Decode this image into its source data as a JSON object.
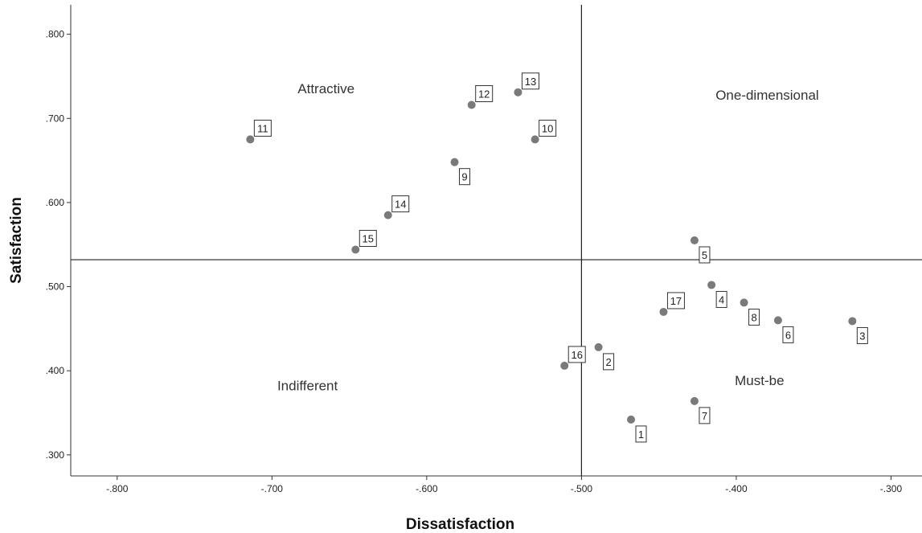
{
  "chart_data": {
    "type": "scatter",
    "xlabel": "Dissatisfaction",
    "ylabel": "Satisfaction",
    "xlim": [
      -0.83,
      -0.28
    ],
    "ylim": [
      0.275,
      0.835
    ],
    "xticks": [
      -0.8,
      -0.7,
      -0.6,
      -0.5,
      -0.4,
      -0.3
    ],
    "xtick_labels": [
      "-.800",
      "-.700",
      "-.600",
      "-.500",
      "-.400",
      "-.300"
    ],
    "yticks": [
      0.3,
      0.4,
      0.5,
      0.6,
      0.7,
      0.8
    ],
    "ytick_labels": [
      ".300",
      ".400",
      ".500",
      ".600",
      ".700",
      ".800"
    ],
    "reference_lines": {
      "x": -0.5,
      "y": 0.532
    },
    "quadrant_labels": [
      {
        "text": "Attractive",
        "x": -0.665,
        "y": 0.73
      },
      {
        "text": "One-dimensional",
        "x": -0.38,
        "y": 0.722
      },
      {
        "text": "Indifferent",
        "x": -0.677,
        "y": 0.377
      },
      {
        "text": "Must-be",
        "x": -0.385,
        "y": 0.383
      }
    ],
    "points": [
      {
        "label": "1",
        "x": -0.468,
        "y": 0.342,
        "pos": "br"
      },
      {
        "label": "2",
        "x": -0.489,
        "y": 0.428,
        "pos": "br"
      },
      {
        "label": "3",
        "x": -0.325,
        "y": 0.459,
        "pos": "br"
      },
      {
        "label": "4",
        "x": -0.416,
        "y": 0.502,
        "pos": "br"
      },
      {
        "label": "5",
        "x": -0.427,
        "y": 0.555,
        "pos": "br"
      },
      {
        "label": "6",
        "x": -0.373,
        "y": 0.46,
        "pos": "br"
      },
      {
        "label": "7",
        "x": -0.427,
        "y": 0.364,
        "pos": "br"
      },
      {
        "label": "8",
        "x": -0.395,
        "y": 0.481,
        "pos": "br"
      },
      {
        "label": "9",
        "x": -0.582,
        "y": 0.648,
        "pos": "br"
      },
      {
        "label": "10",
        "x": -0.53,
        "y": 0.675,
        "pos": "tr"
      },
      {
        "label": "11",
        "x": -0.714,
        "y": 0.675,
        "pos": "tr"
      },
      {
        "label": "12",
        "x": -0.571,
        "y": 0.716,
        "pos": "tr"
      },
      {
        "label": "13",
        "x": -0.541,
        "y": 0.731,
        "pos": "tr"
      },
      {
        "label": "14",
        "x": -0.625,
        "y": 0.585,
        "pos": "tr"
      },
      {
        "label": "15",
        "x": -0.646,
        "y": 0.544,
        "pos": "tr"
      },
      {
        "label": "16",
        "x": -0.511,
        "y": 0.406,
        "pos": "tr"
      },
      {
        "label": "17",
        "x": -0.447,
        "y": 0.47,
        "pos": "tr"
      }
    ],
    "grid": false,
    "legend": "none"
  },
  "colors": {
    "point": "#7a7a7a",
    "axis": "#333333",
    "text": "#222222"
  }
}
